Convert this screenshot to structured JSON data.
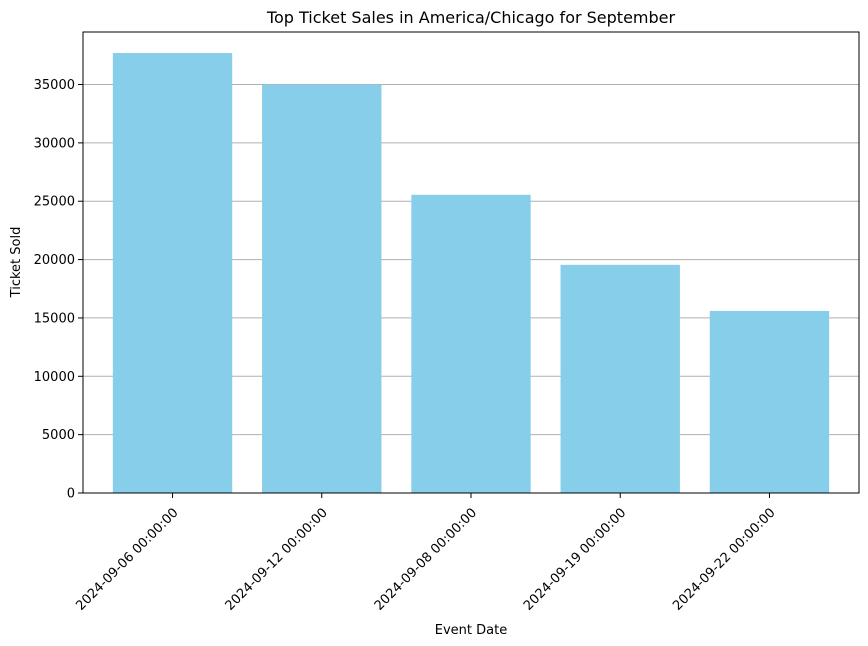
{
  "chart_data": {
    "type": "bar",
    "title": "Top Ticket Sales in America/Chicago for September",
    "xlabel": "Event Date",
    "ylabel": "Ticket Sold",
    "categories": [
      "2024-09-06 00:00:00",
      "2024-09-12 00:00:00",
      "2024-09-08 00:00:00",
      "2024-09-19 00:00:00",
      "2024-09-22 00:00:00"
    ],
    "values": [
      37700,
      35000,
      25550,
      19550,
      15600
    ],
    "ylim": [
      0,
      39500
    ],
    "yticks": [
      0,
      5000,
      10000,
      15000,
      20000,
      25000,
      30000,
      35000
    ],
    "grid": "y",
    "bar_color": "#87ceeb",
    "grid_color": "#b0b0b0"
  }
}
